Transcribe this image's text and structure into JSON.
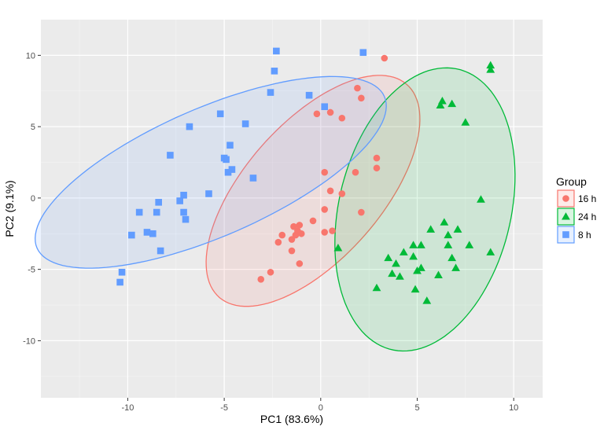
{
  "chart_data": {
    "type": "scatter",
    "xlabel": "PC1 (83.6%)",
    "ylabel": "PC2 (9.1%)",
    "xlim": [
      -14.5,
      11.5
    ],
    "ylim": [
      -14,
      12.5
    ],
    "x_ticks": [
      -10,
      -5,
      0,
      5,
      10
    ],
    "y_ticks": [
      -10,
      -5,
      0,
      5,
      10
    ],
    "x_tick_labels": [
      "-10",
      "-5",
      "0",
      "5",
      "10"
    ],
    "y_tick_labels": [
      "-10",
      "-5",
      "0",
      "5",
      "10"
    ],
    "grid": true,
    "legend": {
      "title": "Group",
      "position": "right"
    },
    "series": [
      {
        "name": "16 h",
        "color": "#F8766D",
        "shape": "circle",
        "ellipse": {
          "cx": -0.4,
          "cy": 0.5,
          "rx": 9.0,
          "ry": 3.9,
          "angle_deg": 61
        },
        "points": [
          [
            3.3,
            9.8
          ],
          [
            1.9,
            7.7
          ],
          [
            2.1,
            7.0
          ],
          [
            -0.2,
            5.9
          ],
          [
            0.5,
            6.0
          ],
          [
            1.1,
            5.6
          ],
          [
            2.9,
            2.8
          ],
          [
            2.9,
            2.1
          ],
          [
            0.2,
            1.8
          ],
          [
            1.8,
            1.8
          ],
          [
            0.5,
            0.5
          ],
          [
            1.1,
            0.3
          ],
          [
            0.2,
            -0.8
          ],
          [
            2.1,
            -1.0
          ],
          [
            -0.4,
            -1.6
          ],
          [
            -1.1,
            -1.9
          ],
          [
            -1.4,
            -2.0
          ],
          [
            -1.2,
            -2.3
          ],
          [
            -2.0,
            -2.6
          ],
          [
            -1.3,
            -2.6
          ],
          [
            -1.0,
            -2.5
          ],
          [
            0.2,
            -2.4
          ],
          [
            0.6,
            -2.3
          ],
          [
            -1.5,
            -2.9
          ],
          [
            -2.2,
            -3.1
          ],
          [
            -1.5,
            -3.7
          ],
          [
            -1.1,
            -4.6
          ],
          [
            -2.6,
            -5.2
          ],
          [
            -3.1,
            -5.7
          ]
        ]
      },
      {
        "name": "24 h",
        "color": "#00BA38",
        "shape": "triangle",
        "ellipse": {
          "cx": 5.4,
          "cy": -0.8,
          "rx": 10.0,
          "ry": 4.5,
          "angle_deg": 82
        },
        "points": [
          [
            8.8,
            9.3
          ],
          [
            8.8,
            9.0
          ],
          [
            6.3,
            6.8
          ],
          [
            6.8,
            6.6
          ],
          [
            6.2,
            6.5
          ],
          [
            7.5,
            5.3
          ],
          [
            8.3,
            -0.1
          ],
          [
            6.4,
            -1.7
          ],
          [
            5.7,
            -2.2
          ],
          [
            7.1,
            -2.2
          ],
          [
            6.6,
            -2.6
          ],
          [
            4.8,
            -3.3
          ],
          [
            5.2,
            -3.3
          ],
          [
            6.6,
            -3.3
          ],
          [
            7.7,
            -3.3
          ],
          [
            0.9,
            -3.5
          ],
          [
            4.3,
            -3.8
          ],
          [
            8.8,
            -3.8
          ],
          [
            4.8,
            -4.1
          ],
          [
            3.5,
            -4.2
          ],
          [
            6.8,
            -4.2
          ],
          [
            3.9,
            -4.6
          ],
          [
            5.2,
            -4.9
          ],
          [
            7.0,
            -4.9
          ],
          [
            5.0,
            -5.1
          ],
          [
            3.7,
            -5.3
          ],
          [
            4.1,
            -5.5
          ],
          [
            6.1,
            -5.4
          ],
          [
            2.9,
            -6.3
          ],
          [
            4.9,
            -6.4
          ],
          [
            5.5,
            -7.2
          ]
        ]
      },
      {
        "name": "8 h",
        "color": "#619CFF",
        "shape": "square",
        "ellipse": {
          "cx": -5.7,
          "cy": 1.8,
          "rx": 10.5,
          "ry": 4.2,
          "angle_deg": 33
        },
        "points": [
          [
            -2.3,
            10.3
          ],
          [
            2.2,
            10.2
          ],
          [
            -2.4,
            8.9
          ],
          [
            -2.6,
            7.4
          ],
          [
            -0.6,
            7.2
          ],
          [
            0.2,
            6.4
          ],
          [
            -5.2,
            5.9
          ],
          [
            -3.9,
            5.2
          ],
          [
            -6.8,
            5.0
          ],
          [
            -7.8,
            3.0
          ],
          [
            -4.7,
            3.7
          ],
          [
            -5.0,
            2.8
          ],
          [
            -4.9,
            2.7
          ],
          [
            -4.6,
            2.0
          ],
          [
            -4.8,
            1.8
          ],
          [
            -3.5,
            1.4
          ],
          [
            -7.1,
            0.2
          ],
          [
            -5.8,
            0.3
          ],
          [
            -7.3,
            -0.2
          ],
          [
            -8.4,
            -0.3
          ],
          [
            -9.4,
            -1.0
          ],
          [
            -7.1,
            -1.0
          ],
          [
            -8.5,
            -1.0
          ],
          [
            -7.0,
            -1.5
          ],
          [
            -9.0,
            -2.4
          ],
          [
            -8.7,
            -2.5
          ],
          [
            -9.8,
            -2.6
          ],
          [
            -8.3,
            -3.7
          ],
          [
            -10.3,
            -5.2
          ],
          [
            -10.4,
            -5.9
          ]
        ]
      }
    ]
  }
}
